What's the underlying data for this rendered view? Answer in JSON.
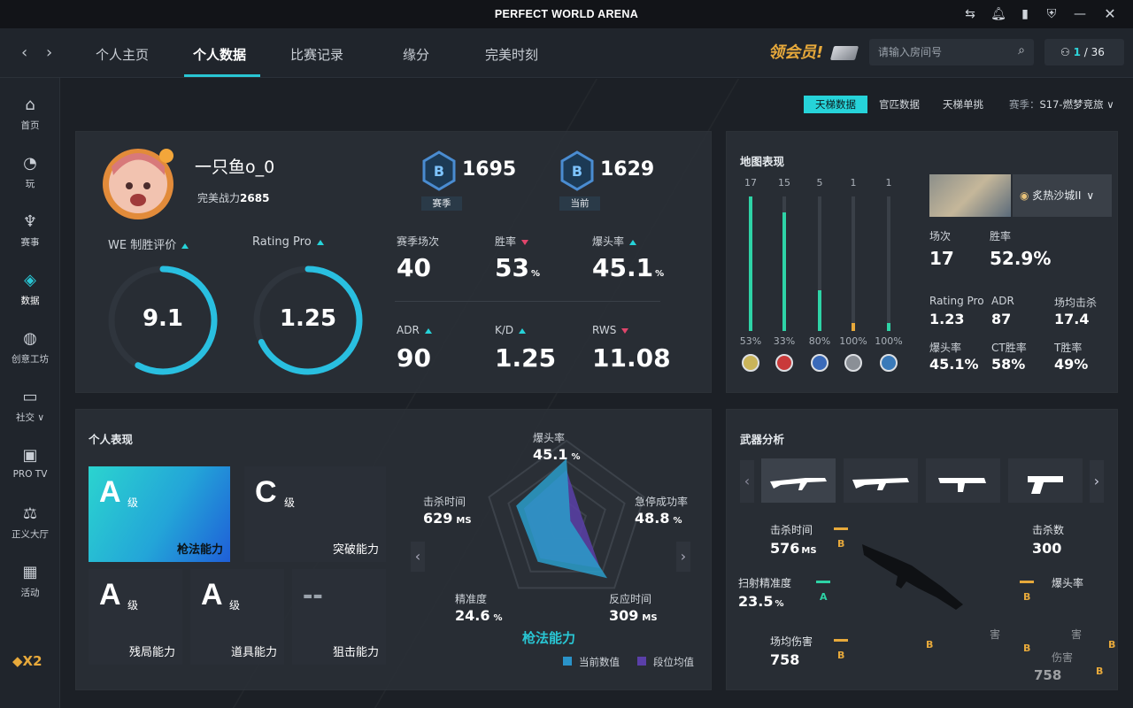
{
  "app_title": "PERFECT WORLD ARENA",
  "nav": {
    "tabs": [
      "个人主页",
      "个人数据",
      "比赛记录",
      "缘分",
      "完美时刻"
    ],
    "active": "个人数据"
  },
  "vip_label": "领会员!",
  "search": {
    "placeholder": "请输入房间号"
  },
  "online": {
    "current": "1",
    "total": "/ 36"
  },
  "sidebar": {
    "items": [
      {
        "label": "首页",
        "icon": "home-icon"
      },
      {
        "label": "玩",
        "icon": "play-icon"
      },
      {
        "label": "赛事",
        "icon": "trophy-icon"
      },
      {
        "label": "数据",
        "icon": "data-icon"
      },
      {
        "label": "创意工坊",
        "icon": "planet-icon"
      },
      {
        "label": "社交 ∨",
        "icon": "chat-icon"
      },
      {
        "label": "PRO TV",
        "icon": "tv-icon"
      },
      {
        "label": "正义大厅",
        "icon": "scale-icon"
      },
      {
        "label": "活动",
        "icon": "calendar-icon"
      }
    ],
    "active": "数据",
    "logo": "X2"
  },
  "filters": {
    "buttons": [
      "天梯数据",
      "官匹数据",
      "天梯单挑"
    ],
    "active": "天梯数据",
    "season_label": "赛季：",
    "season_value": "S17-燃梦竞旅 ∨"
  },
  "profile": {
    "name": "一只鱼o_0",
    "power_label": "完美战力",
    "power_value": "2685"
  },
  "ranks": [
    {
      "score": "1695",
      "label": "赛季"
    },
    {
      "score": "1629",
      "label": "当前"
    }
  ],
  "gauges": [
    {
      "label": "WE 制胜评价",
      "value": "9.1",
      "fraction": 0.58,
      "trend": "up"
    },
    {
      "label": "Rating Pro",
      "value": "1.25",
      "fraction": 0.68,
      "trend": "up"
    }
  ],
  "stats": [
    {
      "label": "赛季场次",
      "value": "40",
      "unit": "",
      "trend": ""
    },
    {
      "label": "胜率",
      "value": "53",
      "unit": "%",
      "trend": "down"
    },
    {
      "label": "爆头率",
      "value": "45.1",
      "unit": "%",
      "trend": "up"
    },
    {
      "label": "ADR",
      "value": "90",
      "unit": "",
      "trend": "up"
    },
    {
      "label": "K/D",
      "value": "1.25",
      "unit": "",
      "trend": "up"
    },
    {
      "label": "RWS",
      "value": "11.08",
      "unit": "",
      "trend": "down"
    }
  ],
  "map_panel": {
    "title": "地图表现",
    "bars": [
      {
        "count": "17",
        "winrate": "53%",
        "fill": 1.0,
        "color": "#2ed3a6"
      },
      {
        "count": "15",
        "winrate": "33%",
        "fill": 0.88,
        "color": "#2ed3a6"
      },
      {
        "count": "5",
        "winrate": "80%",
        "fill": 0.3,
        "color": "#2ed3a6"
      },
      {
        "count": "1",
        "winrate": "100%",
        "fill": 0.06,
        "color": "#e7a93b"
      },
      {
        "count": "1",
        "winrate": "100%",
        "fill": 0.06,
        "color": "#2ed3a6"
      }
    ],
    "selected_map": "炙热沙城II",
    "stats": [
      {
        "label": "场次",
        "value": "17"
      },
      {
        "label": "胜率",
        "value": "52.9%"
      },
      {
        "label": "Rating Pro",
        "value": "1.23"
      },
      {
        "label": "ADR",
        "value": "87"
      },
      {
        "label": "场均击杀",
        "value": "17.4"
      },
      {
        "label": "爆头率",
        "value": "45.1%"
      },
      {
        "label": "CT胜率",
        "value": "58%"
      },
      {
        "label": "T胜率",
        "value": "49%"
      }
    ]
  },
  "perf_panel": {
    "title": "个人表现",
    "grades": [
      {
        "grade": "A",
        "suffix": "级",
        "name": "枪法能力",
        "highlight": true
      },
      {
        "grade": "C",
        "suffix": "级",
        "name": "突破能力",
        "highlight": false
      },
      {
        "grade": "A",
        "suffix": "级",
        "name": "残局能力",
        "highlight": false
      },
      {
        "grade": "A",
        "suffix": "级",
        "name": "道具能力",
        "highlight": false
      },
      {
        "grade": "--",
        "suffix": "",
        "name": "狙击能力",
        "highlight": false
      }
    ],
    "radar": {
      "title": "枪法能力",
      "axes": [
        {
          "label": "爆头率",
          "value": "45.1",
          "unit": "%",
          "current": 0.78,
          "avg": 0.64
        },
        {
          "label": "急停成功率",
          "value": "48.8",
          "unit": "%",
          "current": 0.05,
          "avg": 0.2
        },
        {
          "label": "反应时间",
          "value": "309",
          "unit": "MS",
          "current": 0.85,
          "avg": 0.7
        },
        {
          "label": "精准度",
          "value": "24.6",
          "unit": "%",
          "current": 0.6,
          "avg": 0.55
        },
        {
          "label": "击杀时间",
          "value": "629",
          "unit": "MS",
          "current": 0.65,
          "avg": 0.55
        }
      ],
      "legend": [
        {
          "label": "当前数值",
          "color": "#2a93c9"
        },
        {
          "label": "段位均值",
          "color": "#5a3fa8"
        }
      ]
    }
  },
  "weapon_panel": {
    "title": "武器分析",
    "weapons": [
      "ak47-icon",
      "m4-icon",
      "mp9-icon",
      "glock-icon"
    ],
    "stats": [
      {
        "label": "击杀时间",
        "value": "576",
        "unit": "MS",
        "grade": "B"
      },
      {
        "label": "击杀数",
        "value": "300",
        "unit": "",
        "grade": ""
      },
      {
        "label": "扫射精准度",
        "value": "23.5",
        "unit": "%",
        "grade": "A"
      },
      {
        "label": "爆头率",
        "value": "",
        "unit": "",
        "grade": "B"
      },
      {
        "label": "场均伤害",
        "value": "758",
        "unit": "",
        "grade": "B"
      }
    ],
    "faded": [
      "害",
      "害",
      "伤害",
      "758"
    ],
    "faded_grades": [
      "B",
      "B",
      "B",
      "B"
    ]
  }
}
